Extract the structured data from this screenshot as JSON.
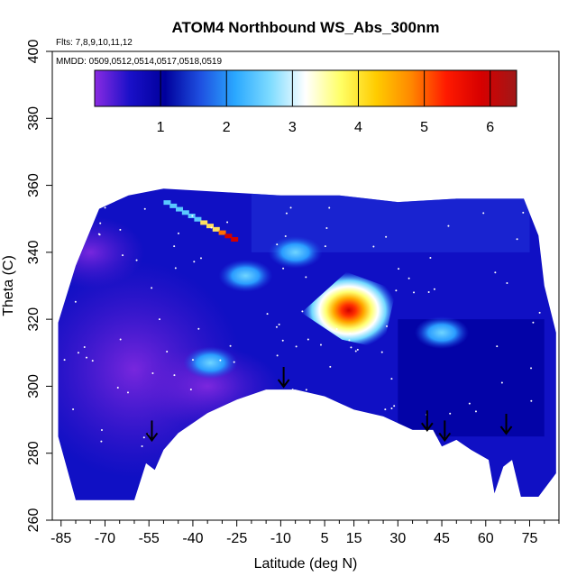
{
  "chart_data": {
    "type": "heatmap",
    "title": "ATOM4 Northbound WS_Abs_300nm",
    "flights_note": "Flts: 7,8,9,10,11,12",
    "dates_note": "MMDD: 0509,0512,0514,0517,0518,0519",
    "xlabel": "Latitude (deg N)",
    "ylabel": "Theta (C)",
    "xlim": [
      -88,
      85
    ],
    "ylim": [
      260,
      400
    ],
    "x_ticks": [
      -85,
      -70,
      -55,
      -40,
      -25,
      -10,
      5,
      15,
      30,
      45,
      60,
      75
    ],
    "y_ticks": [
      260,
      280,
      300,
      320,
      340,
      360,
      380,
      400
    ],
    "colorbar": {
      "range": [
        0,
        6.4
      ],
      "ticks": [
        1,
        2,
        3,
        4,
        5,
        6
      ],
      "colors": [
        "#8a2be2",
        "#1a10c8",
        "#00009c",
        "#1e4fe0",
        "#2aa8ff",
        "#7fdcff",
        "#ffffff",
        "#ffff66",
        "#ffcc00",
        "#ff8800",
        "#ff1a00",
        "#d60000",
        "#a01818"
      ]
    },
    "data_extent": {
      "lower_boundary": [
        [
          -86,
          285
        ],
        [
          -80,
          266
        ],
        [
          -70,
          266
        ],
        [
          -60,
          266
        ],
        [
          -56,
          277
        ],
        [
          -53,
          275
        ],
        [
          -50,
          281
        ],
        [
          -45,
          286
        ],
        [
          -35,
          292
        ],
        [
          -25,
          296
        ],
        [
          -15,
          299
        ],
        [
          -5,
          299
        ],
        [
          5,
          297
        ],
        [
          15,
          293
        ],
        [
          25,
          291
        ],
        [
          35,
          287
        ],
        [
          42,
          287
        ],
        [
          45,
          282
        ],
        [
          50,
          284
        ],
        [
          55,
          281
        ],
        [
          61,
          278
        ],
        [
          63,
          268
        ],
        [
          66,
          276
        ],
        [
          69,
          278
        ],
        [
          72,
          267
        ],
        [
          78,
          267
        ],
        [
          84,
          274
        ]
      ],
      "upper_boundary": [
        [
          -86,
          319
        ],
        [
          -80,
          336
        ],
        [
          -72,
          353
        ],
        [
          -62,
          357
        ],
        [
          -50,
          359
        ],
        [
          -30,
          358
        ],
        [
          -10,
          357
        ],
        [
          10,
          357
        ],
        [
          30,
          355
        ],
        [
          50,
          356
        ],
        [
          65,
          356
        ],
        [
          73,
          356
        ],
        [
          78,
          345
        ],
        [
          80,
          330
        ],
        [
          84,
          316
        ]
      ]
    },
    "hotspots": [
      {
        "lat": 14,
        "theta": 322,
        "value": 5.9
      },
      {
        "lat": -27,
        "theta": 344,
        "value": 5.5
      },
      {
        "lat": -22,
        "theta": 333,
        "value": 2.4
      },
      {
        "lat": -34,
        "theta": 307,
        "value": 2.3
      },
      {
        "lat": -5,
        "theta": 340,
        "value": 2.5
      },
      {
        "lat": 45,
        "theta": 316,
        "value": 2.1
      }
    ],
    "arrows": [
      {
        "lat": -54,
        "theta": 286
      },
      {
        "lat": -9,
        "theta": 302
      },
      {
        "lat": 40,
        "theta": 289
      },
      {
        "lat": 46,
        "theta": 286
      },
      {
        "lat": 67,
        "theta": 288
      }
    ]
  }
}
